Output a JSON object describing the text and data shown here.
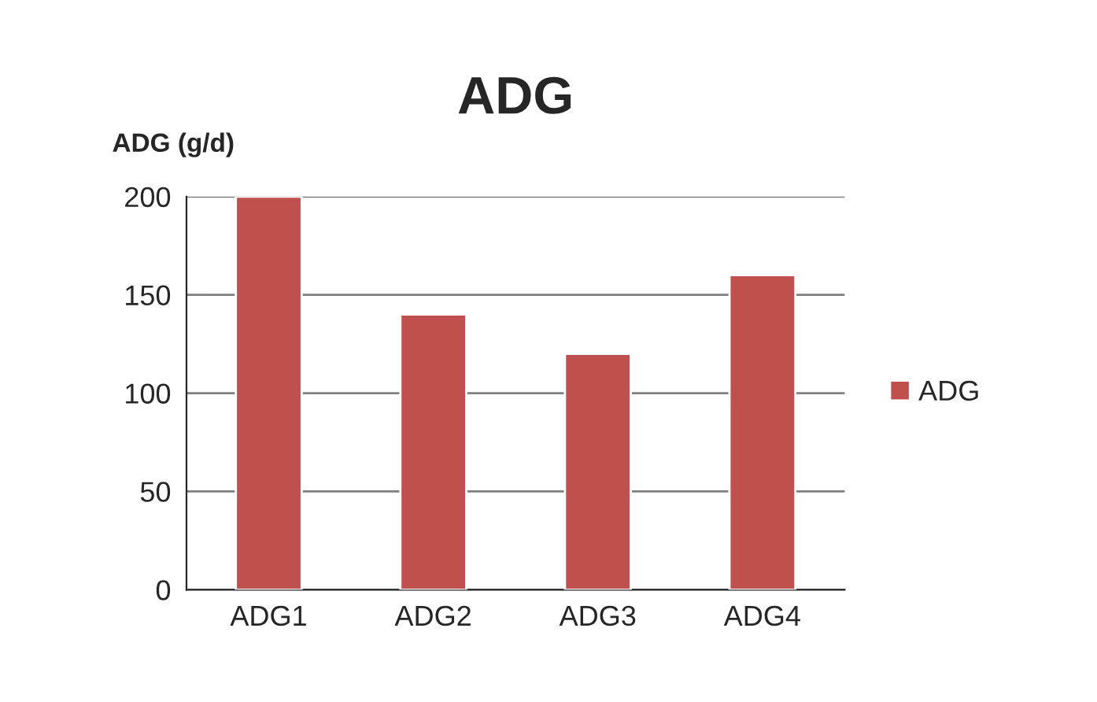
{
  "chart_data": {
    "type": "bar",
    "title": "ADG",
    "ylabel": "ADG (g/d)",
    "categories": [
      "ADG1",
      "ADG2",
      "ADG3",
      "ADG4"
    ],
    "series": [
      {
        "name": "ADG",
        "color": "#c0504d",
        "values": [
          200,
          140,
          120,
          160
        ]
      }
    ],
    "ylim": [
      0,
      200
    ],
    "yticks": [
      0,
      50,
      100,
      150,
      200
    ],
    "grid": "y",
    "legend": "right"
  }
}
